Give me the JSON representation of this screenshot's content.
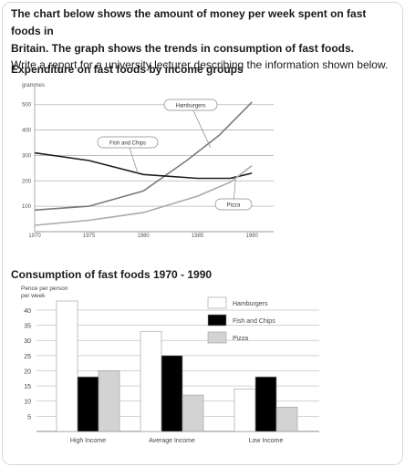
{
  "intro": {
    "line1": "The chart below shows the amount of money per week spent on fast foods in",
    "line2": "Britain. The graph shows the trends in consumption of fast foods.",
    "line3": "Write a report for a university lecturer describing the information shown below."
  },
  "chart_data": [
    {
      "type": "line",
      "title": "Expenditure on fast foods by income groups",
      "ylabel": "grammes",
      "xlabel": "",
      "x": [
        1970,
        1975,
        1980,
        1985,
        1990
      ],
      "xticks": [
        "1970",
        "1975",
        "1980",
        "1985",
        "1990"
      ],
      "yticks": [
        "100",
        "200",
        "300",
        "400",
        "500"
      ],
      "ylim": [
        0,
        560
      ],
      "xlim": [
        1970,
        1992
      ],
      "grid": true,
      "series": [
        {
          "name": "Hamburgers",
          "points": [
            [
              1970,
              85
            ],
            [
              1975,
              100
            ],
            [
              1980,
              160
            ],
            [
              1984,
              280
            ],
            [
              1987,
              380
            ],
            [
              1990,
              510
            ]
          ],
          "color": "#7a7a7a"
        },
        {
          "name": "Fish and Chips",
          "points": [
            [
              1970,
              310
            ],
            [
              1975,
              280
            ],
            [
              1980,
              225
            ],
            [
              1985,
              210
            ],
            [
              1988,
              210
            ],
            [
              1990,
              230
            ]
          ],
          "color": "#1e1e1e"
        },
        {
          "name": "Pizza",
          "points": [
            [
              1970,
              25
            ],
            [
              1975,
              45
            ],
            [
              1980,
              75
            ],
            [
              1985,
              140
            ],
            [
              1988,
              195
            ],
            [
              1990,
              260
            ]
          ],
          "color": "#aaaaaa"
        }
      ]
    },
    {
      "type": "bar",
      "title": "Consumption of fast foods 1970 - 1990",
      "ylabel": "Pence per person per week",
      "ylabel_lines": [
        "Pence per person",
        "per week"
      ],
      "categories": [
        "High Income",
        "Average Income",
        "Low Income"
      ],
      "yticks": [
        "5",
        "10",
        "15",
        "20",
        "25",
        "30",
        "35",
        "40"
      ],
      "ylim": [
        0,
        43
      ],
      "grid": true,
      "legend": "top-right",
      "series": [
        {
          "name": "Hamburgers",
          "values": [
            43,
            33,
            14
          ],
          "color": "#ffffff"
        },
        {
          "name": "Fish and Chips",
          "values": [
            18,
            25,
            18
          ],
          "color": "#000000"
        },
        {
          "name": "Pizza",
          "values": [
            20,
            12,
            8
          ],
          "color": "#d3d3d3"
        }
      ]
    }
  ]
}
